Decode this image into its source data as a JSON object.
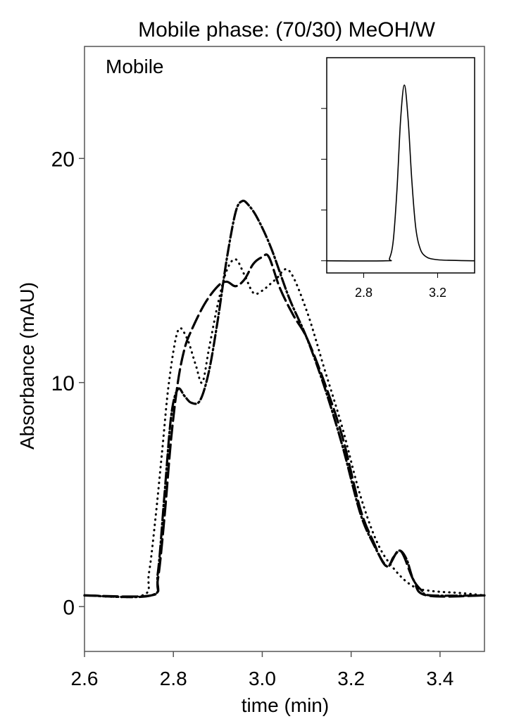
{
  "chart_data": [
    {
      "type": "line",
      "title": "Mobile phase: (70/30) MeOH/W",
      "annotation": "Mobile",
      "xlabel": "time (min)",
      "ylabel": "Absorbance (mAU)",
      "xlim": [
        2.6,
        3.5
      ],
      "ylim": [
        -2,
        25
      ],
      "xticks": [
        2.6,
        2.8,
        3.0,
        3.2,
        3.4
      ],
      "xtick_labels": [
        "2.6",
        "2.8",
        "3.0",
        "3.2",
        "3.4"
      ],
      "yticks": [
        0,
        10,
        20
      ],
      "ytick_labels": [
        "0",
        "10",
        "20"
      ],
      "grid": false,
      "series": [
        {
          "style": "dash-dot",
          "color": "#000000",
          "x": [
            2.6,
            2.75,
            2.765,
            2.78,
            2.795,
            2.81,
            2.825,
            2.84,
            2.86,
            2.88,
            2.9,
            2.92,
            2.94,
            2.955,
            2.97,
            2.99,
            3.02,
            3.06,
            3.1,
            3.14,
            3.18,
            3.22,
            3.25,
            3.28,
            3.295,
            3.31,
            3.325,
            3.34,
            3.36,
            3.38,
            3.5
          ],
          "y": [
            0.5,
            0.5,
            1.5,
            5.0,
            8.5,
            9.7,
            9.4,
            9.1,
            9.2,
            10.5,
            12.8,
            15.5,
            17.6,
            18.1,
            17.9,
            17.3,
            16.0,
            13.8,
            12.0,
            9.8,
            7.2,
            4.2,
            2.8,
            1.8,
            2.2,
            2.5,
            2.1,
            1.2,
            0.7,
            0.5,
            0.5
          ]
        },
        {
          "style": "dash",
          "color": "#000000",
          "x": [
            2.6,
            2.75,
            2.765,
            2.78,
            2.795,
            2.81,
            2.825,
            2.84,
            2.87,
            2.9,
            2.92,
            2.94,
            2.96,
            2.98,
            3.0,
            3.015,
            3.04,
            3.07,
            3.1,
            3.14,
            3.18,
            3.22,
            3.25,
            3.28,
            3.31,
            3.34,
            3.37,
            3.5
          ],
          "y": [
            0.5,
            0.5,
            1.2,
            4.0,
            7.5,
            10.0,
            11.5,
            12.3,
            13.5,
            14.3,
            14.5,
            14.3,
            14.6,
            15.3,
            15.6,
            15.6,
            14.2,
            13.0,
            12.0,
            10.0,
            7.6,
            4.4,
            2.9,
            1.8,
            2.5,
            1.2,
            0.5,
            0.5
          ]
        },
        {
          "style": "dotted",
          "color": "#000000",
          "x": [
            2.6,
            2.73,
            2.745,
            2.76,
            2.775,
            2.79,
            2.81,
            2.83,
            2.85,
            2.865,
            2.88,
            2.9,
            2.92,
            2.94,
            2.96,
            2.98,
            3.0,
            3.03,
            3.06,
            3.1,
            3.14,
            3.18,
            3.22,
            3.26,
            3.3,
            3.34,
            3.38,
            3.45,
            3.5
          ],
          "y": [
            0.5,
            0.5,
            1.5,
            4.0,
            7.0,
            10.0,
            12.3,
            12.0,
            10.8,
            10.0,
            11.5,
            13.5,
            15.0,
            15.5,
            14.8,
            14.0,
            14.1,
            14.6,
            15.0,
            13.2,
            10.6,
            8.0,
            5.0,
            2.8,
            1.6,
            0.9,
            0.7,
            0.6,
            0.5
          ]
        }
      ]
    },
    {
      "type": "line",
      "position": "inset top-right",
      "xlim": [
        2.6,
        3.4
      ],
      "ylim": [
        -0.24,
        4.0
      ],
      "xticks": [
        2.8,
        3.2
      ],
      "xtick_labels": [
        "2.8",
        "3.2"
      ],
      "yticks": [
        0,
        1,
        2,
        3
      ],
      "grid": false,
      "series": [
        {
          "style": "solid",
          "color": "#000000",
          "x": [
            2.6,
            2.92,
            2.94,
            2.96,
            2.98,
            3.0,
            3.02,
            3.04,
            3.06,
            3.08,
            3.1,
            3.13,
            3.2,
            3.4
          ],
          "y": [
            0,
            0,
            0.05,
            0.4,
            1.4,
            2.8,
            3.46,
            2.8,
            1.6,
            0.7,
            0.3,
            0.1,
            0.02,
            0
          ]
        }
      ]
    }
  ]
}
